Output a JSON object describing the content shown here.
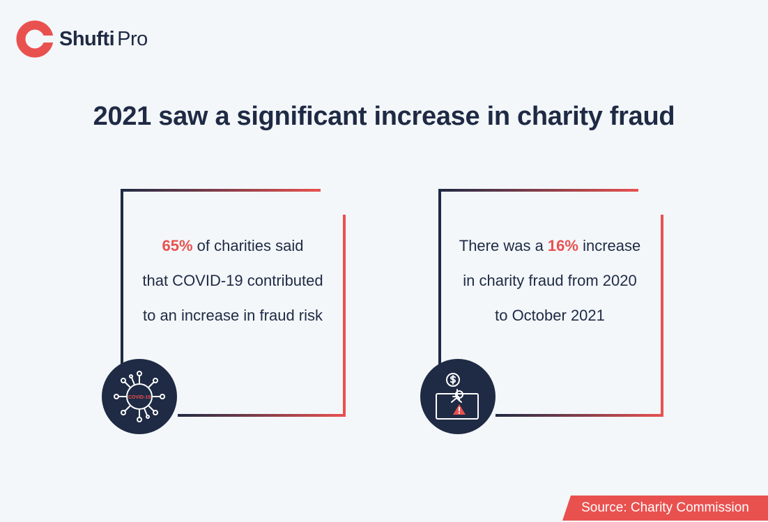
{
  "brand": {
    "name_bold": "Shufti",
    "name_light": "Pro"
  },
  "title": "2021 saw a significant increase in charity fraud",
  "cards": [
    {
      "line1_highlight": "65%",
      "line1_rest": " of charities said",
      "line2": "that COVID-19 contributed",
      "line3": "to an increase in fraud risk",
      "icon_label": "COVID-19",
      "icon": "virus-icon"
    },
    {
      "line1_pre": "There was a ",
      "line1_highlight": "16%",
      "line1_post": " increase",
      "line2": "in charity fraud from 2020",
      "line3": "to October 2021",
      "icon": "fraud-alert-icon"
    }
  ],
  "source": "Source: Charity Commission",
  "colors": {
    "accent": "#e9514f",
    "navy": "#1f2a44",
    "background": "#f3f7fa"
  }
}
